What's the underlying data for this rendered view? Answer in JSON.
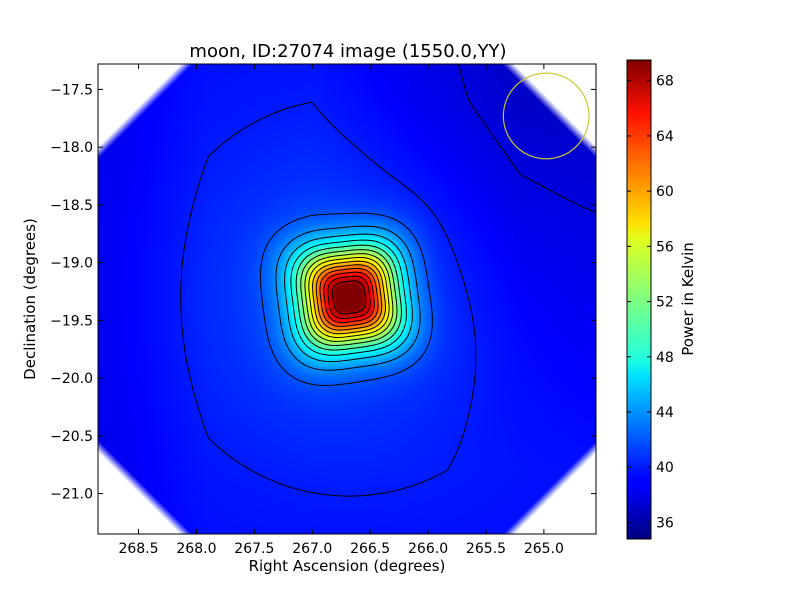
{
  "chart_data": {
    "type": "heatmap",
    "title": "moon, ID:27074 image (1550.0,YY)",
    "xlabel": "Right Ascension (degrees)",
    "ylabel": "Declination (degrees)",
    "xlim": [
      268.85,
      264.55
    ],
    "ylim": [
      -21.35,
      -17.28
    ],
    "xticks": [
      268.5,
      268.0,
      267.5,
      267.0,
      266.5,
      266.0,
      265.5,
      265.0
    ],
    "xtick_labels": [
      "268.5",
      "268.0",
      "267.5",
      "267.0",
      "266.5",
      "266.0",
      "265.5",
      "265.0"
    ],
    "yticks": [
      -17.5,
      -18.0,
      -18.5,
      -19.0,
      -19.5,
      -20.0,
      -20.5,
      -21.0
    ],
    "ytick_labels": [
      "−17.5",
      "−18.0",
      "−18.5",
      "−19.0",
      "−19.5",
      "−20.0",
      "−20.5",
      "−21.0"
    ],
    "colormap": "jet",
    "colorbar": {
      "label": "Power in Kelvin",
      "vmin": 34.8,
      "vmax": 69.5,
      "ticks": [
        36,
        40,
        44,
        48,
        52,
        56,
        60,
        64,
        68
      ],
      "tick_labels": [
        "36",
        "40",
        "44",
        "48",
        "52",
        "56",
        "60",
        "64",
        "68"
      ]
    },
    "source": {
      "center_ra": 266.68,
      "center_dec": -19.3,
      "peak_value": 69.5,
      "background_value": 39.5
    },
    "contour_levels": [
      38,
      40,
      42,
      44,
      46,
      48,
      50,
      52,
      54,
      56,
      58,
      60,
      62,
      64,
      66,
      68
    ],
    "contour_color": "#000000",
    "beam_circle": {
      "center_ra": 264.98,
      "center_dec": -17.73,
      "radius_deg": 0.37,
      "color": "#c8c832"
    },
    "grid": false,
    "legend": "none"
  }
}
